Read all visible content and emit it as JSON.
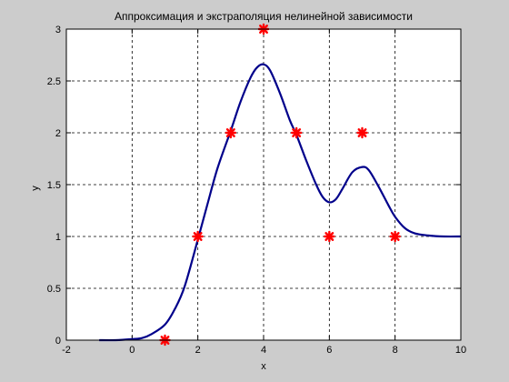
{
  "colors": {
    "figure_background": "#cccccc",
    "axes_background": "#ffffff",
    "curve": "#00008b",
    "markers": "#ff0000",
    "grid": "#000000"
  },
  "chart_data": {
    "type": "line",
    "title": "Аппроксимация и экстраполяция нелинейной зависимости",
    "xlabel": "x",
    "ylabel": "y",
    "xlim": [
      -2,
      10
    ],
    "ylim": [
      0,
      3
    ],
    "grid": true,
    "x_ticks": [
      -2,
      0,
      2,
      4,
      6,
      8,
      10
    ],
    "x_tick_labels": [
      "-2",
      "0",
      "2",
      "4",
      "6",
      "8",
      "10"
    ],
    "y_ticks": [
      0,
      0.5,
      1,
      1.5,
      2,
      2.5,
      3
    ],
    "y_tick_labels": [
      "0",
      "0.5",
      "1",
      "1.5",
      "2",
      "2.5",
      "3"
    ],
    "series": [
      {
        "style": "line",
        "color": "#00008b",
        "x": [
          -1,
          -0.5,
          0,
          0.3,
          0.6,
          1,
          1.3,
          1.6,
          2,
          2.3,
          2.6,
          3,
          3.3,
          3.6,
          3.8,
          4,
          4.2,
          4.5,
          4.8,
          5,
          5.3,
          5.6,
          5.8,
          6,
          6.2,
          6.4,
          6.7,
          7,
          7.2,
          7.5,
          7.8,
          8,
          8.3,
          8.6,
          9,
          9.5,
          10
        ],
        "y": [
          0,
          0,
          0.01,
          0.02,
          0.06,
          0.15,
          0.3,
          0.52,
          0.97,
          1.32,
          1.66,
          2.02,
          2.3,
          2.53,
          2.63,
          2.66,
          2.6,
          2.38,
          2.12,
          1.98,
          1.73,
          1.5,
          1.38,
          1.33,
          1.36,
          1.46,
          1.62,
          1.67,
          1.64,
          1.48,
          1.3,
          1.19,
          1.08,
          1.03,
          1.01,
          1,
          1
        ]
      },
      {
        "style": "markers",
        "color": "#ff0000",
        "x": [
          1,
          2,
          3,
          4,
          5,
          6,
          7,
          8
        ],
        "y": [
          0,
          1,
          2,
          3,
          2,
          1,
          2,
          1
        ]
      }
    ]
  }
}
